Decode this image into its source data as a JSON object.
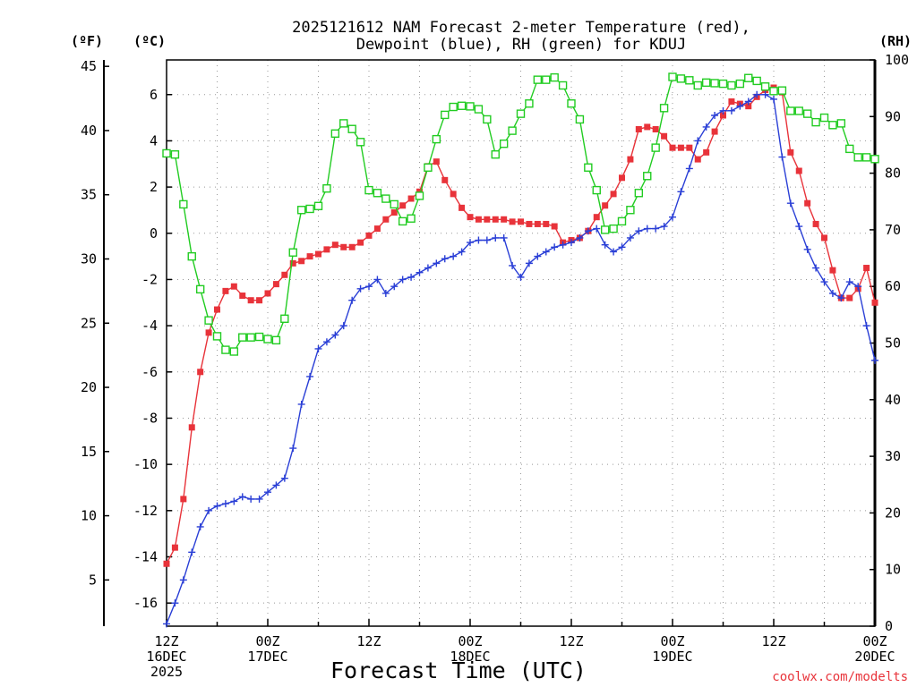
{
  "chart_data": {
    "type": "line",
    "title_line1": "2025121612 NAM Forecast 2-meter Temperature (red),",
    "title_line2": "Dewpoint (blue), RH (green) for KDUJ",
    "units": {
      "fahrenheit": "(ºF)",
      "celsius": "(ºC)",
      "rh": "(RH)"
    },
    "xlabel": "Forecast Time (UTC)",
    "credit": "coolwx.com/modelts",
    "x_range_hours": [
      0,
      84
    ],
    "celsius_axis": {
      "min": -17,
      "max": 7.5,
      "ticks": [
        "-16",
        "-14",
        "-12",
        "-10",
        "-8",
        "-6",
        "-4",
        "-2",
        "0",
        "2",
        "4",
        "6"
      ],
      "tick_values": [
        -16,
        -14,
        -12,
        -10,
        -8,
        -6,
        -4,
        -2,
        0,
        2,
        4,
        6
      ]
    },
    "fahrenheit_axis": {
      "ticks": [
        "5",
        "10",
        "15",
        "20",
        "25",
        "30",
        "35",
        "40",
        "45"
      ],
      "tick_values": [
        5,
        10,
        15,
        20,
        25,
        30,
        35,
        40,
        45
      ]
    },
    "rh_axis": {
      "min": 0,
      "max": 100,
      "ticks": [
        "0",
        "10",
        "20",
        "30",
        "40",
        "50",
        "60",
        "70",
        "80",
        "90",
        "100"
      ],
      "tick_values": [
        0,
        10,
        20,
        30,
        40,
        50,
        60,
        70,
        80,
        90,
        100
      ]
    },
    "x_ticks": [
      {
        "hour": 0,
        "line1": "12Z",
        "line2": "16DEC",
        "line3": "2025"
      },
      {
        "hour": 12,
        "line1": "00Z",
        "line2": "17DEC",
        "line3": ""
      },
      {
        "hour": 24,
        "line1": "12Z",
        "line2": "",
        "line3": ""
      },
      {
        "hour": 36,
        "line1": "00Z",
        "line2": "18DEC",
        "line3": ""
      },
      {
        "hour": 48,
        "line1": "12Z",
        "line2": "",
        "line3": ""
      },
      {
        "hour": 60,
        "line1": "00Z",
        "line2": "19DEC",
        "line3": ""
      },
      {
        "hour": 72,
        "line1": "12Z",
        "line2": "",
        "line3": ""
      },
      {
        "hour": 84,
        "line1": "00Z",
        "line2": "20DEC",
        "line3": ""
      }
    ],
    "x_hours": [
      0,
      1,
      2,
      3,
      4,
      5,
      6,
      7,
      8,
      9,
      10,
      11,
      12,
      13,
      14,
      15,
      16,
      17,
      18,
      19,
      20,
      21,
      22,
      23,
      24,
      25,
      26,
      27,
      28,
      29,
      30,
      31,
      32,
      33,
      34,
      35,
      36,
      37,
      38,
      39,
      40,
      41,
      42,
      43,
      44,
      45,
      46,
      47,
      48,
      49,
      50,
      51,
      52,
      53,
      54,
      55,
      56,
      57,
      58,
      59,
      60,
      61,
      62,
      63,
      64,
      65,
      66,
      67,
      68,
      69,
      70,
      71,
      72,
      73,
      74,
      75,
      76,
      77,
      78,
      79,
      80,
      81,
      82,
      83,
      84
    ],
    "series": [
      {
        "name": "Temperature",
        "color": "#e8333a",
        "axis": "celsius",
        "marker": "filled-square",
        "values": [
          -14.3,
          -13.6,
          -11.5,
          -8.4,
          -6.0,
          -4.3,
          -3.3,
          -2.5,
          -2.3,
          -2.7,
          -2.9,
          -2.9,
          -2.6,
          -2.2,
          -1.8,
          -1.3,
          -1.2,
          -1.0,
          -0.9,
          -0.7,
          -0.5,
          -0.6,
          -0.6,
          -0.4,
          -0.1,
          0.2,
          0.6,
          0.9,
          1.2,
          1.5,
          1.8,
          2.9,
          3.1,
          2.3,
          1.7,
          1.1,
          0.7,
          0.6,
          0.6,
          0.6,
          0.6,
          0.5,
          0.5,
          0.4,
          0.4,
          0.4,
          0.3,
          -0.4,
          -0.3,
          -0.2,
          0.1,
          0.7,
          1.2,
          1.7,
          2.4,
          3.2,
          4.5,
          4.6,
          4.5,
          4.2,
          3.7,
          3.7,
          3.7,
          3.2,
          3.5,
          4.4,
          5.1,
          5.7,
          5.6,
          5.5,
          5.9,
          6.2,
          6.3,
          6.1,
          3.5,
          2.7,
          1.3,
          0.4,
          -0.2,
          -1.6,
          -2.8,
          -2.8,
          -2.4,
          -1.5,
          -3.0
        ]
      },
      {
        "name": "Dewpoint",
        "color": "#2a3fd6",
        "axis": "celsius",
        "marker": "plus",
        "values": [
          -16.9,
          -16.0,
          -15.0,
          -13.8,
          -12.7,
          -12.0,
          -11.8,
          -11.7,
          -11.6,
          -11.4,
          -11.5,
          -11.5,
          -11.2,
          -10.9,
          -10.6,
          -9.3,
          -7.4,
          -6.2,
          -5.0,
          -4.7,
          -4.4,
          -4.0,
          -2.9,
          -2.4,
          -2.3,
          -2.0,
          -2.6,
          -2.3,
          -2.0,
          -1.9,
          -1.7,
          -1.5,
          -1.3,
          -1.1,
          -1.0,
          -0.8,
          -0.4,
          -0.3,
          -0.3,
          -0.2,
          -0.2,
          -1.4,
          -1.9,
          -1.3,
          -1.0,
          -0.8,
          -0.6,
          -0.5,
          -0.4,
          -0.2,
          0.1,
          0.2,
          -0.5,
          -0.8,
          -0.6,
          -0.2,
          0.1,
          0.2,
          0.2,
          0.3,
          0.7,
          1.8,
          2.8,
          4.0,
          4.6,
          5.1,
          5.3,
          5.3,
          5.5,
          5.7,
          6.0,
          6.0,
          5.8,
          3.3,
          1.3,
          0.3,
          -0.7,
          -1.5,
          -2.1,
          -2.6,
          -2.8,
          -2.1,
          -2.3,
          -4.0,
          -5.5
        ]
      },
      {
        "name": "RH",
        "color": "#22cc22",
        "axis": "rh",
        "marker": "open-square",
        "values": [
          83.5,
          83.3,
          74.5,
          65.3,
          59.5,
          54.0,
          51.2,
          48.8,
          48.5,
          51.0,
          51.0,
          51.1,
          50.7,
          50.5,
          54.3,
          66.0,
          73.5,
          73.7,
          74.2,
          77.3,
          87.0,
          88.8,
          87.8,
          85.5,
          77.0,
          76.5,
          75.5,
          74.5,
          71.5,
          72.0,
          76.0,
          81.0,
          86.0,
          90.3,
          91.7,
          91.9,
          91.8,
          91.3,
          89.5,
          83.3,
          85.2,
          87.5,
          90.5,
          92.3,
          96.5,
          96.5,
          96.9,
          95.5,
          92.3,
          89.5,
          81.0,
          77.0,
          70.0,
          70.2,
          71.5,
          73.5,
          76.5,
          79.5,
          84.5,
          91.5,
          97.0,
          96.7,
          96.4,
          95.5,
          96.0,
          95.9,
          95.8,
          95.5,
          95.8,
          96.8,
          96.3,
          95.3,
          94.5,
          94.6,
          91.0,
          91.0,
          90.5,
          89.0,
          89.8,
          88.5,
          88.8,
          84.3,
          82.8,
          82.8,
          82.5
        ]
      }
    ]
  }
}
